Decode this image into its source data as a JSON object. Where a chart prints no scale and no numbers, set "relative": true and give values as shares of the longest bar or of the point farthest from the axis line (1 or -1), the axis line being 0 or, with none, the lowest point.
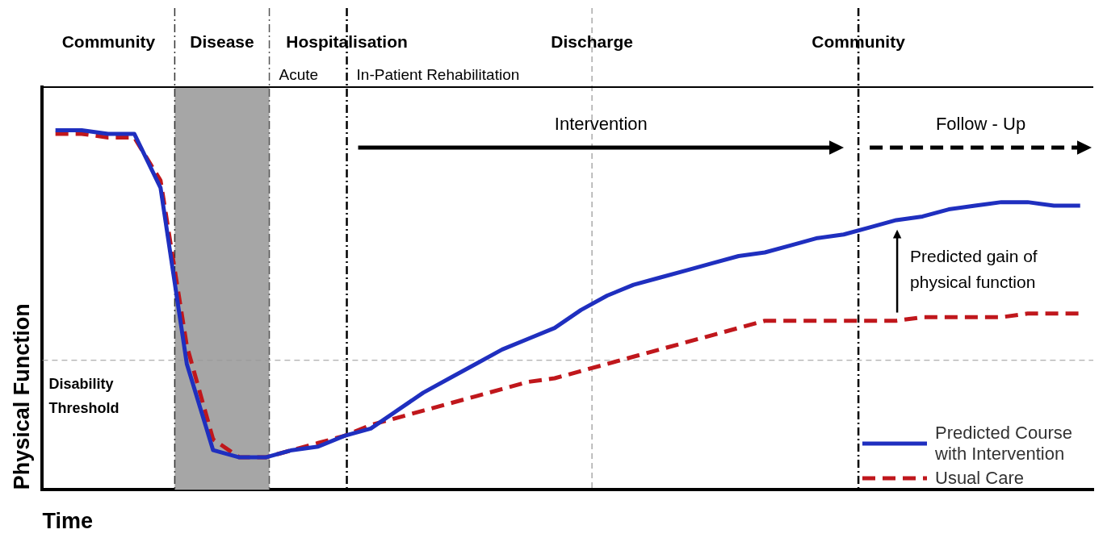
{
  "chart_data": {
    "type": "line",
    "relative": true,
    "ylabel": "Physical Function",
    "xlabel": "Time",
    "legend": "bottom right",
    "grid": false,
    "categories": [
      null,
      null,
      null,
      null,
      null,
      null,
      null,
      null,
      null,
      null,
      null,
      null,
      null,
      null,
      null,
      null,
      null,
      null,
      null,
      null,
      null,
      null,
      null,
      null,
      null,
      null,
      null,
      null,
      null,
      null,
      null,
      null,
      null,
      null,
      null,
      null,
      null,
      null,
      null,
      null
    ],
    "series": [
      {
        "name": "Predicted Course with Intervention",
        "color": "#1f2fbf",
        "line_style": "solid",
        "values": [
          1.0,
          1.0,
          0.99,
          0.99,
          0.84,
          0.35,
          0.11,
          0.09,
          0.09,
          0.11,
          0.12,
          0.15,
          0.17,
          0.22,
          0.27,
          0.31,
          0.35,
          0.39,
          0.42,
          0.45,
          0.5,
          0.54,
          0.57,
          0.59,
          0.61,
          0.63,
          0.65,
          0.66,
          0.68,
          0.7,
          0.71,
          0.73,
          0.75,
          0.76,
          0.78,
          0.79,
          0.8,
          0.8,
          0.79,
          0.79
        ]
      },
      {
        "name": "Usual Care",
        "color": "#c0171c",
        "line_style": "dashed",
        "values": [
          0.99,
          0.99,
          0.98,
          0.98,
          0.86,
          0.4,
          0.14,
          0.09,
          0.09,
          0.11,
          0.13,
          0.15,
          0.18,
          0.2,
          0.22,
          0.24,
          0.26,
          0.28,
          0.3,
          0.31,
          0.33,
          0.35,
          0.37,
          0.39,
          0.41,
          0.43,
          0.45,
          0.47,
          0.47,
          0.47,
          0.47,
          0.47,
          0.47,
          0.48,
          0.48,
          0.48,
          0.48,
          0.49,
          0.49,
          0.49
        ]
      }
    ],
    "ref_lines": [
      {
        "axis": "y",
        "value": 0.36,
        "label": "Disability Threshold",
        "color": "#999999",
        "line_style": "dotted"
      }
    ],
    "annotations": [
      "Community",
      "Disease",
      "Hospitalisation",
      "Acute",
      "In-Patient Rehabilitation",
      "Discharge",
      "Community",
      "Intervention",
      "Follow - Up",
      "Predicted gain of physical function"
    ]
  }
}
